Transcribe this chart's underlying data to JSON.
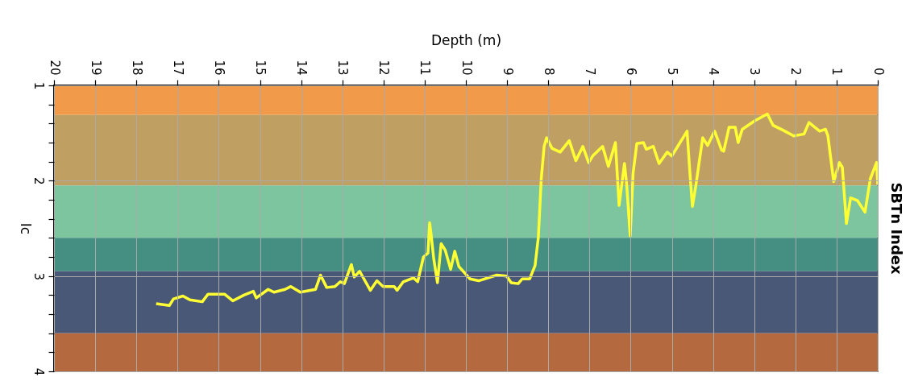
{
  "chart_data": {
    "type": "line",
    "title": "SBTn Index",
    "xlabel": "Depth (m)",
    "ylabel": "Ic",
    "xlim": [
      20,
      0
    ],
    "xticks": [
      20,
      19,
      18,
      17,
      16,
      15,
      14,
      13,
      12,
      11,
      10,
      9,
      8,
      7,
      6,
      5,
      4,
      3,
      2,
      1,
      0
    ],
    "ylim": [
      4,
      1
    ],
    "yticks": [
      1,
      {
        "value": 1.2,
        "label": null
      },
      {
        "value": 1.4,
        "label": null
      },
      {
        "value": 1.6,
        "label": null
      },
      {
        "value": 1.8,
        "label": null
      },
      2,
      {
        "value": 2.2,
        "label": null
      },
      {
        "value": 2.4,
        "label": null
      },
      {
        "value": 2.6,
        "label": null
      },
      {
        "value": 2.8,
        "label": null
      },
      3,
      {
        "value": 3.2,
        "label": null
      },
      {
        "value": 3.4,
        "label": null
      },
      {
        "value": 3.6,
        "label": null
      },
      {
        "value": 3.8,
        "label": null
      },
      4
    ],
    "grid": true,
    "bands": [
      {
        "axis": "y",
        "from": 1,
        "to": 1.31,
        "color": "#f09a4a"
      },
      {
        "axis": "y",
        "from": 1.31,
        "to": 2.05,
        "color": "#c0a062"
      },
      {
        "axis": "y",
        "from": 2.05,
        "to": 2.6,
        "color": "#7dc59f"
      },
      {
        "axis": "y",
        "from": 2.6,
        "to": 2.95,
        "color": "#458f82"
      },
      {
        "axis": "y",
        "from": 2.95,
        "to": 3.6,
        "color": "#4a5878"
      },
      {
        "axis": "y",
        "from": 3.6,
        "to": 4,
        "color": "#b5693e"
      }
    ],
    "series": [
      {
        "color": "#ffff33",
        "x": [
          17.52,
          17.2,
          17.1,
          16.87,
          16.7,
          16.4,
          16.26,
          15.86,
          15.66,
          15.39,
          15.16,
          15.09,
          14.8,
          14.66,
          14.39,
          14.25,
          14.02,
          13.65,
          13.53,
          13.38,
          13.18,
          13.05,
          12.95,
          12.78,
          12.71,
          12.58,
          12.32,
          12.16,
          12.01,
          11.74,
          11.67,
          11.52,
          11.27,
          11.17,
          11.03,
          10.92,
          10.88,
          10.84,
          10.78,
          10.69,
          10.6,
          10.5,
          10.37,
          10.27,
          10.17,
          9.9,
          9.69,
          9.25,
          9.01,
          8.9,
          8.73,
          8.63,
          8.45,
          8.32,
          8.24,
          8.17,
          8.1,
          8.04,
          7.91,
          7.71,
          7.49,
          7.33,
          7.16,
          7.02,
          6.92,
          6.68,
          6.54,
          6.37,
          6.28,
          6.15,
          6.1,
          6.01,
          5.94,
          5.85,
          5.69,
          5.62,
          5.45,
          5.31,
          5.11,
          5.0,
          4.8,
          4.63,
          4.56,
          4.5,
          4.42,
          4.25,
          4.13,
          3.96,
          3.79,
          3.74,
          3.61,
          3.46,
          3.39,
          3.29,
          2.98,
          2.68,
          2.54,
          2.3,
          2.04,
          1.79,
          1.67,
          1.41,
          1.27,
          1.21,
          1.07,
          0.93,
          0.86,
          0.76,
          0.66,
          0.49,
          0.31,
          0.18,
          0.03,
          0
        ],
        "values": [
          3.29,
          3.31,
          3.24,
          3.21,
          3.25,
          3.27,
          3.19,
          3.19,
          3.26,
          3.2,
          3.16,
          3.23,
          3.14,
          3.17,
          3.14,
          3.11,
          3.17,
          3.14,
          2.99,
          3.12,
          3.11,
          3.06,
          3.08,
          2.88,
          3.01,
          2.95,
          3.15,
          3.05,
          3.11,
          3.11,
          3.15,
          3.06,
          3.02,
          3.06,
          2.8,
          2.76,
          2.44,
          2.58,
          2.82,
          3.07,
          2.66,
          2.73,
          2.93,
          2.74,
          2.9,
          3.03,
          3.05,
          2.99,
          3.0,
          3.07,
          3.08,
          3.03,
          3.03,
          2.89,
          2.59,
          1.98,
          1.64,
          1.55,
          1.66,
          1.7,
          1.58,
          1.79,
          1.64,
          1.81,
          1.74,
          1.64,
          1.85,
          1.6,
          2.26,
          1.82,
          2.02,
          2.58,
          1.92,
          1.61,
          1.6,
          1.67,
          1.64,
          1.82,
          1.7,
          1.74,
          1.6,
          1.48,
          1.92,
          2.27,
          2.06,
          1.55,
          1.63,
          1.48,
          1.68,
          1.69,
          1.44,
          1.44,
          1.6,
          1.46,
          1.37,
          1.3,
          1.42,
          1.47,
          1.53,
          1.51,
          1.39,
          1.48,
          1.46,
          1.53,
          2.01,
          1.81,
          1.86,
          2.45,
          2.18,
          2.21,
          2.33,
          1.98,
          1.81,
          2.04
        ]
      }
    ]
  }
}
